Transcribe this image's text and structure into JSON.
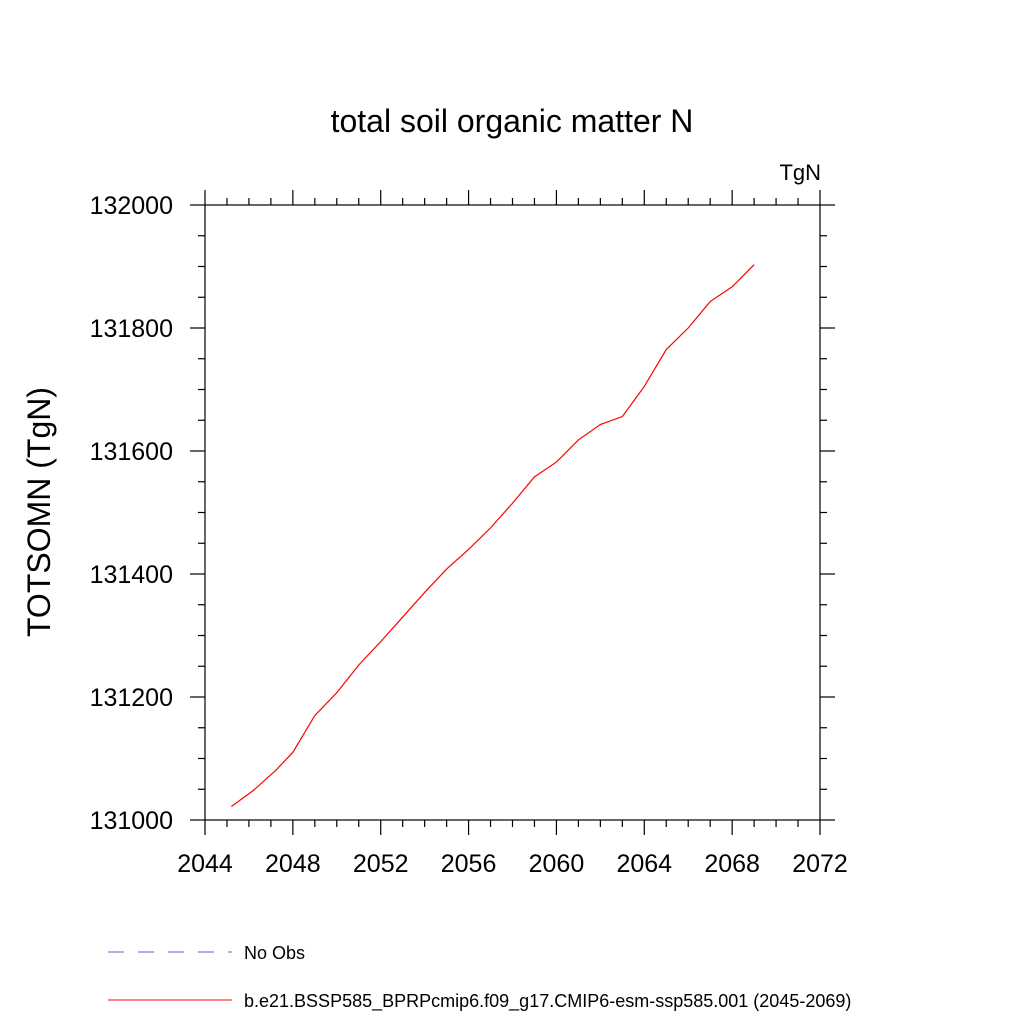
{
  "chart_data": {
    "type": "line",
    "title": "total soil organic matter N",
    "units_label": "TgN",
    "xlabel": "",
    "ylabel": "TOTSOMN  (TgN)",
    "xlim": [
      2044,
      2072
    ],
    "ylim": [
      131000,
      132000
    ],
    "x_major_ticks": [
      2044,
      2048,
      2052,
      2056,
      2060,
      2064,
      2068,
      2072
    ],
    "x_minor_step": 1,
    "y_major_ticks": [
      131000,
      131200,
      131400,
      131600,
      131800,
      132000
    ],
    "y_minor_step": 50,
    "grid": false,
    "legend_position": "bottom",
    "series": [
      {
        "name": "b.e21.BSSP585_BPRPcmip6.f09_g17.CMIP6-esm-ssp585.001 (2045-2069)",
        "color": "#ff0000",
        "dash": "solid",
        "x": [
          2045.2,
          2046.2,
          2047.2,
          2048.0,
          2049.0,
          2050.0,
          2051.0,
          2052.0,
          2053.0,
          2054.0,
          2055.0,
          2056.0,
          2057.0,
          2058.0,
          2059.0,
          2060.0,
          2061.0,
          2062.0,
          2063.0,
          2064.0,
          2065.0,
          2066.0,
          2067.0,
          2068.0,
          2069.0
        ],
        "values": [
          131022,
          131048,
          131080,
          131110,
          131170,
          131207,
          131252,
          131290,
          131330,
          131370,
          131408,
          131440,
          131475,
          131515,
          131558,
          131582,
          131618,
          131643,
          131656,
          131705,
          131765,
          131800,
          131843,
          131867,
          131903
        ]
      },
      {
        "name": "No Obs",
        "color": "#6a5acd",
        "dash": "dashed",
        "x": [],
        "values": []
      }
    ]
  }
}
